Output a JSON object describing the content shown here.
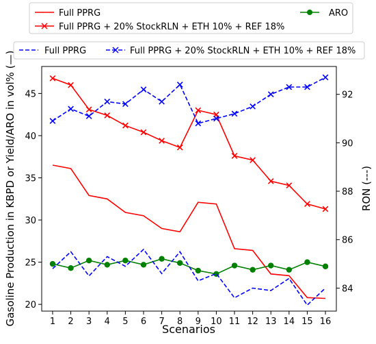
{
  "chart_data": {
    "type": "line",
    "title": "",
    "xlabel": "Scenarios",
    "ylabel_left": "Gasoline Production in KBPD or Yield/ARO in vol% (—)",
    "ylabel_right": "RON (---)",
    "x": [
      1,
      2,
      3,
      4,
      5,
      6,
      7,
      8,
      9,
      10,
      11,
      12,
      13,
      14,
      15,
      16
    ],
    "x_ticks": [
      "1",
      "2",
      "3",
      "4",
      "5",
      "6",
      "7",
      "8",
      "9",
      "10",
      "11",
      "12",
      "13",
      "14",
      "15",
      "16"
    ],
    "ylim_left": [
      19.2,
      48.2
    ],
    "yticks_left": [
      "20",
      "25",
      "30",
      "35",
      "40",
      "45"
    ],
    "ylim_right": [
      83.05,
      93.15
    ],
    "yticks_right": [
      "84",
      "86",
      "88",
      "90",
      "92"
    ],
    "grid": false,
    "legend_top": {
      "entries": [
        {
          "label": "Full PPRG",
          "series": 0
        },
        {
          "label": "ARO",
          "series": 2
        },
        {
          "label": "Full PPRG + 20% StockRLN + ETH 10% + REF 18%",
          "series": 1
        }
      ]
    },
    "legend_bottom": {
      "entries": [
        {
          "label": "Full PPRG",
          "series": 3
        },
        {
          "label": "Full PPRG + 20% StockRLN + ETH 10% + REF 18%",
          "series": 4
        }
      ]
    },
    "series": [
      {
        "name": "Full PPRG",
        "axis": "left",
        "color": "#ff0000",
        "dash": "solid",
        "marker": "none",
        "values": [
          36.5,
          36.1,
          32.9,
          32.5,
          30.9,
          30.5,
          29.0,
          28.6,
          32.1,
          31.9,
          26.6,
          26.4,
          23.6,
          23.4,
          20.8,
          20.7
        ]
      },
      {
        "name": "Full PPRG + 20% StockRLN + ETH 10% + REF 18%",
        "axis": "left",
        "color": "#ff0000",
        "dash": "solid",
        "marker": "x",
        "values": [
          46.8,
          46.0,
          43.1,
          42.4,
          41.2,
          40.4,
          39.4,
          38.6,
          43.0,
          42.5,
          37.6,
          37.1,
          34.6,
          34.1,
          31.9,
          31.3
        ]
      },
      {
        "name": "ARO",
        "axis": "left",
        "color": "#008000",
        "dash": "solid",
        "marker": "o",
        "values": [
          24.8,
          24.3,
          25.2,
          24.7,
          25.2,
          24.7,
          25.4,
          24.9,
          24.0,
          23.6,
          24.6,
          24.1,
          24.6,
          24.1,
          25.0,
          24.5
        ]
      },
      {
        "name": "Full PPRG",
        "axis": "right",
        "color": "#0000ff",
        "dash": "dashed",
        "marker": "none",
        "values": [
          84.8,
          85.5,
          84.5,
          85.3,
          84.9,
          85.6,
          84.6,
          85.5,
          84.3,
          84.6,
          83.6,
          84.0,
          83.9,
          84.4,
          83.3,
          84.0
        ]
      },
      {
        "name": "Full PPRG + 20% StockRLN + ETH 10% + REF 18%",
        "axis": "right",
        "color": "#0000ff",
        "dash": "dashed",
        "marker": "x",
        "values": [
          90.9,
          91.4,
          91.1,
          91.7,
          91.6,
          92.2,
          91.7,
          92.4,
          90.8,
          91.0,
          91.2,
          91.5,
          92.0,
          92.3,
          92.3,
          92.7
        ]
      }
    ]
  }
}
